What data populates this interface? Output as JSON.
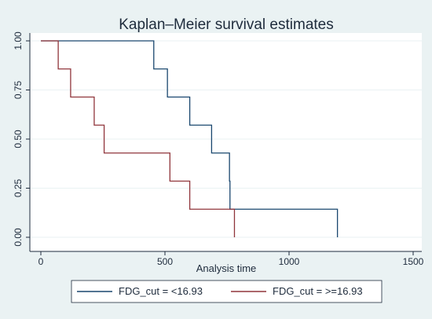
{
  "chart_data": {
    "type": "line",
    "step": true,
    "title": "Kaplan–Meier survival estimates",
    "xlabel": "Analysis time",
    "ylabel": "",
    "xlim": [
      0,
      1500
    ],
    "ylim": [
      0,
      1
    ],
    "xticks": [
      "0",
      "500",
      "1000",
      "1500"
    ],
    "yticks": [
      "0.00",
      "0.25",
      "0.50",
      "0.75",
      "1.00"
    ],
    "grid": "horizontal",
    "legend_position": "bottom",
    "series": [
      {
        "name": "FDG_cut = <16.93",
        "color": "#1a476f",
        "x": [
          0,
          455,
          510,
          600,
          688,
          760,
          762,
          1195
        ],
        "y": [
          1.0,
          0.857,
          0.714,
          0.571,
          0.429,
          0.286,
          0.143,
          0.0
        ]
      },
      {
        "name": "FDG_cut = >=16.93",
        "color": "#90353b",
        "x": [
          0,
          70,
          120,
          215,
          255,
          520,
          600,
          780
        ],
        "y": [
          1.0,
          0.857,
          0.714,
          0.571,
          0.429,
          0.286,
          0.143,
          0.0
        ]
      }
    ]
  }
}
